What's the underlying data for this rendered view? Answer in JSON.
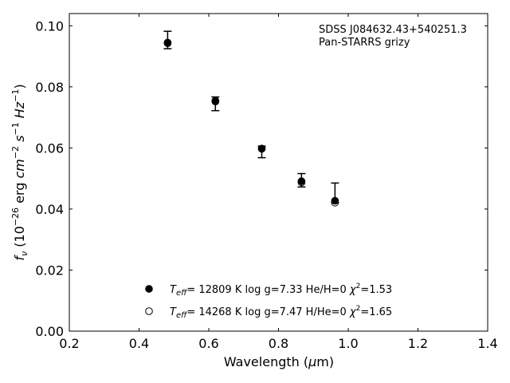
{
  "chart_data": {
    "type": "scatter",
    "annotation": [
      "SDSS J084632.43+540251.3",
      "Pan-STARRS grizy"
    ],
    "xlabel": "Wavelength (μm)",
    "ylabel": "f_ν (10^-26 erg cm^-2 s^-1 Hz^-1)",
    "xlim": [
      0.2,
      1.4
    ],
    "ylim": [
      0.0,
      0.104
    ],
    "xticks": [
      0.2,
      0.4,
      0.6,
      0.8,
      1.0,
      1.2,
      1.4
    ],
    "xtick_labels": [
      "0.2",
      "0.4",
      "0.6",
      "0.8",
      "1.0",
      "1.2",
      "1.4"
    ],
    "yticks": [
      0.0,
      0.02,
      0.04,
      0.06,
      0.08,
      0.1
    ],
    "ytick_labels": [
      "0.00",
      "0.02",
      "0.04",
      "0.06",
      "0.08",
      "0.10"
    ],
    "grid": false,
    "legend_position": "bottom-center",
    "observed": [
      {
        "x": 0.482,
        "y": 0.0952,
        "lo": 0.0925,
        "hi": 0.0982
      },
      {
        "x": 0.619,
        "y": 0.0746,
        "lo": 0.0722,
        "hi": 0.0767
      },
      {
        "x": 0.752,
        "y": 0.0591,
        "lo": 0.0568,
        "hi": 0.0606
      },
      {
        "x": 0.866,
        "y": 0.0494,
        "lo": 0.0472,
        "hi": 0.0516
      },
      {
        "x": 0.962,
        "y": 0.042,
        "lo": 0.0422,
        "hi": 0.0485
      }
    ],
    "series": [
      {
        "name": "T_eff= 12809 K  log g=7.33  He/H=0  χ²=1.53",
        "marker": "filled",
        "x": [
          0.482,
          0.619,
          0.752,
          0.866,
          0.962
        ],
        "y": [
          0.0943,
          0.0752,
          0.0597,
          0.0491,
          0.0427
        ]
      },
      {
        "name": "T_eff= 14268 K  log g=7.47  H/He=0  χ²=1.65",
        "marker": "open",
        "x": [
          0.482,
          0.619,
          0.752,
          0.866,
          0.962
        ],
        "y": [
          0.0945,
          0.0755,
          0.0598,
          0.0487,
          0.0421
        ]
      }
    ],
    "legend": [
      {
        "marker": "filled",
        "teff_label": "T",
        "teff_sub": "eff",
        "text": "= 12809 K  log g=7.33  He/H=0  ",
        "chi_label": "χ",
        "chi_sup": "2",
        "chi_value": "=1.53"
      },
      {
        "marker": "open",
        "teff_label": "T",
        "teff_sub": "eff",
        "text": "= 14268 K  log g=7.47  H/He=0  ",
        "chi_label": "χ",
        "chi_sup": "2",
        "chi_value": "=1.65"
      }
    ],
    "colors": {
      "marker": "#000000",
      "axis": "#000000",
      "background": "#ffffff"
    }
  }
}
